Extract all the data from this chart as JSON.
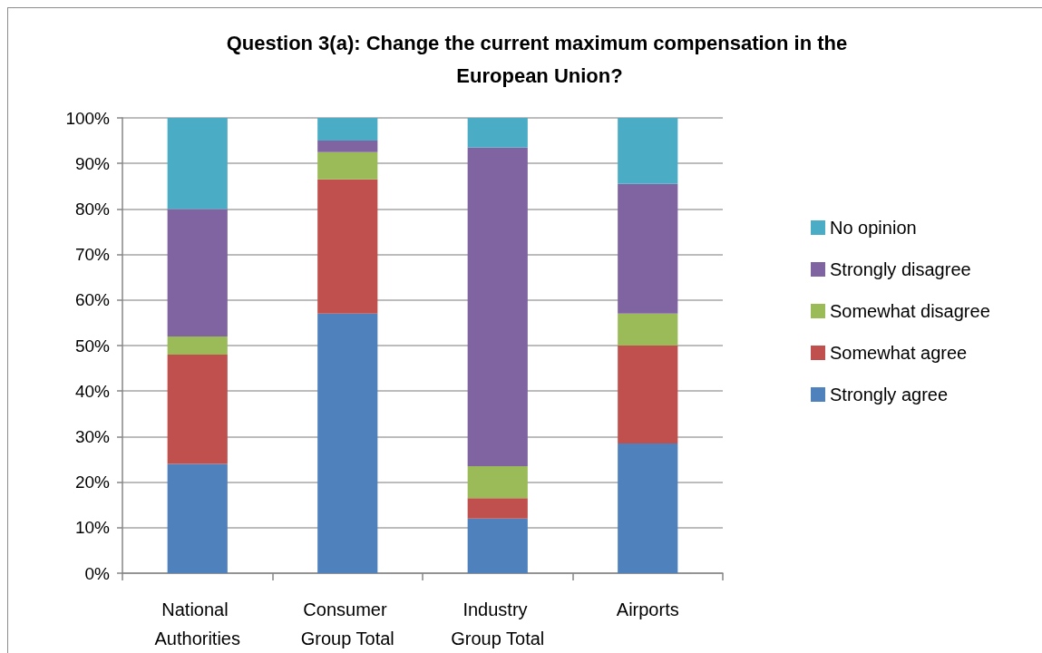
{
  "chart_data": {
    "type": "bar",
    "title": "Question 3(a): Change the current maximum compensation in the European Union?",
    "categories": [
      "National Authorities",
      "Consumer Group Total",
      "Industry Group Total",
      "Airports"
    ],
    "series": [
      {
        "name": "Strongly agree",
        "color": "#4f81bd",
        "values": [
          24,
          57,
          12,
          28.5
        ]
      },
      {
        "name": "Somewhat agree",
        "color": "#c0504d",
        "values": [
          24,
          29.5,
          4.5,
          21.5
        ]
      },
      {
        "name": "Somewhat disagree",
        "color": "#9bbb59",
        "values": [
          4,
          6,
          7,
          7
        ]
      },
      {
        "name": "Strongly disagree",
        "color": "#8064a2",
        "values": [
          28,
          2.5,
          70,
          28.5
        ]
      },
      {
        "name": "No opinion",
        "color": "#4bacc6",
        "values": [
          20,
          5,
          6.5,
          14.5
        ]
      }
    ],
    "stacked": true,
    "ylim": [
      0,
      100
    ],
    "yticks": [
      {
        "value": 0,
        "label": "0%"
      },
      {
        "value": 10,
        "label": "10%"
      },
      {
        "value": 20,
        "label": "20%"
      },
      {
        "value": 30,
        "label": "30%"
      },
      {
        "value": 40,
        "label": "40%"
      },
      {
        "value": 50,
        "label": "50%"
      },
      {
        "value": 60,
        "label": "60%"
      },
      {
        "value": 70,
        "label": "70%"
      },
      {
        "value": 80,
        "label": "80%"
      },
      {
        "value": 90,
        "label": "90%"
      },
      {
        "value": 100,
        "label": "100%"
      }
    ],
    "grid": "y",
    "legend": "right"
  }
}
